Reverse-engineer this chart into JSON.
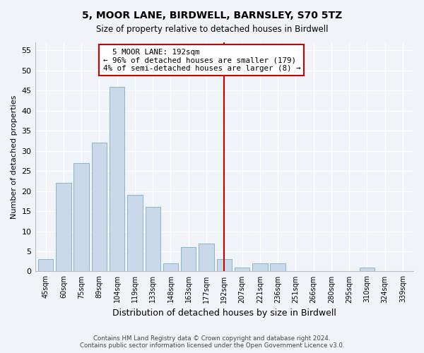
{
  "title1": "5, MOOR LANE, BIRDWELL, BARNSLEY, S70 5TZ",
  "title2": "Size of property relative to detached houses in Birdwell",
  "xlabel": "Distribution of detached houses by size in Birdwell",
  "ylabel": "Number of detached properties",
  "categories": [
    "45sqm",
    "60sqm",
    "75sqm",
    "89sqm",
    "104sqm",
    "119sqm",
    "133sqm",
    "148sqm",
    "163sqm",
    "177sqm",
    "192sqm",
    "207sqm",
    "221sqm",
    "236sqm",
    "251sqm",
    "266sqm",
    "280sqm",
    "295sqm",
    "310sqm",
    "324sqm",
    "339sqm"
  ],
  "values": [
    3,
    22,
    27,
    32,
    46,
    19,
    16,
    2,
    6,
    7,
    3,
    1,
    2,
    2,
    0,
    0,
    0,
    0,
    1,
    0,
    0
  ],
  "bar_color": "#c9d9ea",
  "bar_edge_color": "#8ab4cc",
  "vline_x": 10,
  "annotation_text": "  5 MOOR LANE: 192sqm\n← 96% of detached houses are smaller (179)\n4% of semi-detached houses are larger (8) →",
  "annotation_box_color": "#ffffff",
  "annotation_box_edge": "#cc0000",
  "vline_color": "#cc0000",
  "ylim": [
    0,
    57
  ],
  "yticks": [
    0,
    5,
    10,
    15,
    20,
    25,
    30,
    35,
    40,
    45,
    50,
    55
  ],
  "footer1": "Contains HM Land Registry data © Crown copyright and database right 2024.",
  "footer2": "Contains public sector information licensed under the Open Government Licence v3.0.",
  "bg_color": "#f0f4f8",
  "plot_bg_color": "#f0f4f8"
}
